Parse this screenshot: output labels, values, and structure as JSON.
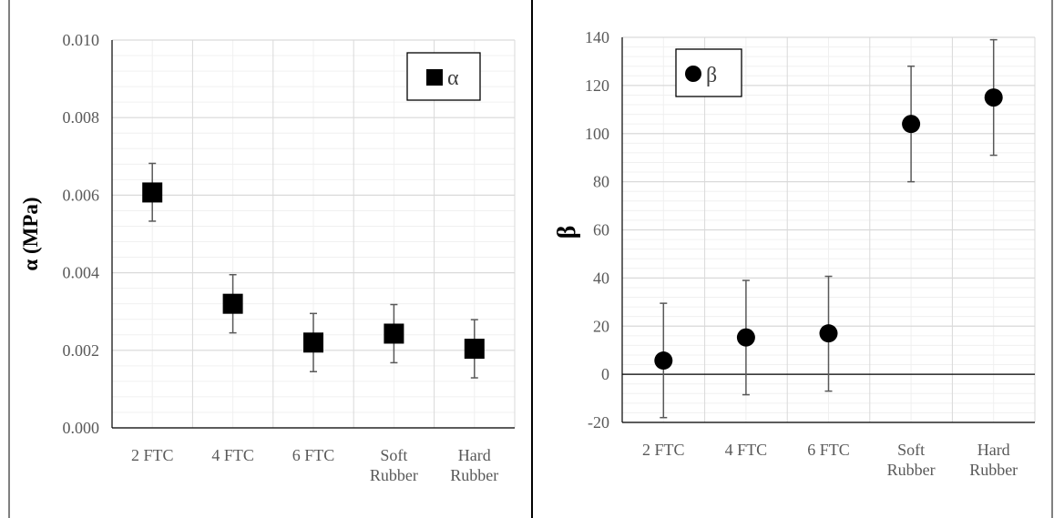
{
  "chart_data": [
    {
      "type": "scatter",
      "categories": [
        "2 FTC",
        "4 FTC",
        "6 FTC",
        "Soft Rubber",
        "Hard Rubber"
      ],
      "series": [
        {
          "name": "α",
          "marker": "square",
          "values": [
            0.00607,
            0.0032,
            0.0022,
            0.00243,
            0.00204
          ],
          "err_low": [
            0.00533,
            0.00245,
            0.00145,
            0.00168,
            0.00129
          ],
          "err_high": [
            0.00682,
            0.00395,
            0.00295,
            0.00318,
            0.00279
          ]
        }
      ],
      "ylabel": "α (MPa)",
      "ylim": [
        0,
        0.01
      ],
      "yticks": [
        "0.000",
        "0.002",
        "0.004",
        "0.006",
        "0.008",
        "0.010"
      ],
      "grid": true,
      "legend_position": "top-right",
      "colors": {
        "marker": "#000000",
        "grid_major": "#d9d9d9",
        "grid_minor": "#f0f0f0",
        "errorbar": "#595959"
      }
    },
    {
      "type": "scatter",
      "categories": [
        "2 FTC",
        "4 FTC",
        "6 FTC",
        "Soft Rubber",
        "Hard Rubber"
      ],
      "series": [
        {
          "name": "β",
          "marker": "circle",
          "values": [
            5.7,
            15.3,
            17,
            104,
            115
          ],
          "err_low": [
            -18,
            -8.5,
            -7,
            80,
            91
          ],
          "err_high": [
            29.5,
            39,
            40.7,
            128,
            139
          ]
        }
      ],
      "ylabel": "β",
      "ylim": [
        -20,
        140
      ],
      "yticks": [
        "-20",
        "0",
        "20",
        "40",
        "60",
        "80",
        "100",
        "120",
        "140"
      ],
      "grid": true,
      "legend_position": "top-left",
      "colors": {
        "marker": "#000000",
        "grid_major": "#d9d9d9",
        "grid_minor": "#f0f0f0",
        "errorbar": "#595959"
      }
    }
  ]
}
